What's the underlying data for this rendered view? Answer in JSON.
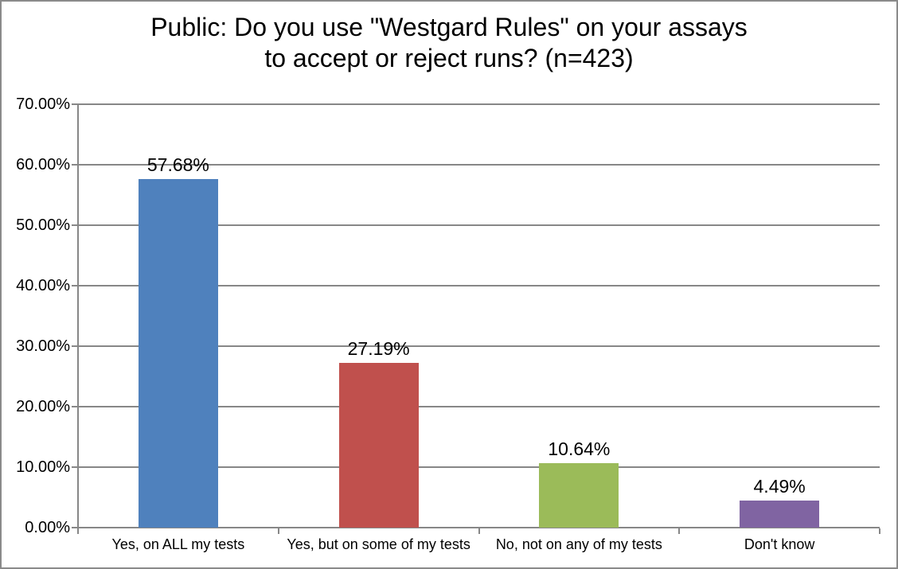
{
  "window": {
    "background": "#FFFFFF",
    "border_color": "#8A8A8A",
    "text_color": "#000000"
  },
  "chart_data": {
    "type": "bar",
    "title": "Public: Do you use \"Westgard Rules\" on your assays to accept or reject runs? (n=423)",
    "title_lines": [
      "Public: Do you use \"Westgard Rules\" on your assays",
      "to accept or reject runs? (n=423)"
    ],
    "n": 423,
    "categories": [
      "Yes, on ALL my tests",
      "Yes, but on  some of my tests",
      "No, not on any of my tests",
      "Don't know"
    ],
    "values": [
      57.68,
      27.19,
      10.64,
      4.49
    ],
    "data_labels": [
      "57.68%",
      "27.19%",
      "10.64%",
      "4.49%"
    ],
    "bar_colors": [
      "#4F81BD",
      "#C0504D",
      "#9BBB59",
      "#8064A2"
    ],
    "xlabel": "",
    "ylabel": "",
    "ylim": [
      0,
      70
    ],
    "ytick_step": 10,
    "ytick_labels": [
      "0.00%",
      "10.00%",
      "20.00%",
      "30.00%",
      "40.00%",
      "50.00%",
      "60.00%",
      "70.00%"
    ],
    "grid": true,
    "legend_position": "none",
    "gridline_color": "#878787",
    "axis_color": "#878787"
  }
}
